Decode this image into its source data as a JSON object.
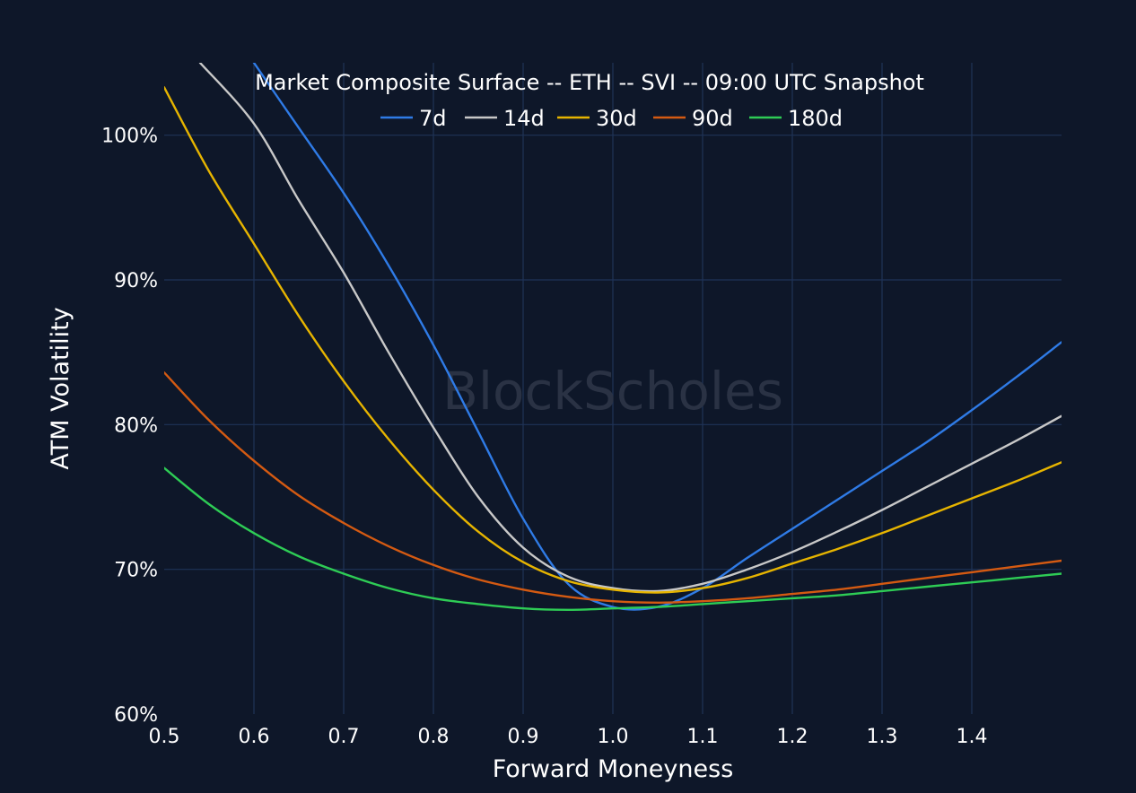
{
  "watermark": "BlockScholes",
  "colors": {
    "background": "#0e1729",
    "grid": "#1f3357"
  },
  "chart_data": {
    "type": "line",
    "title": "Market Composite Surface -- ETH -- SVI -- 09:00 UTC Snapshot",
    "xlabel": "Forward Moneyness",
    "ylabel": "ATM Volatility",
    "xlim": [
      0.5,
      1.5
    ],
    "ylim": [
      60,
      105
    ],
    "x_ticks": [
      0.5,
      0.6,
      0.7,
      0.8,
      0.9,
      1.0,
      1.1,
      1.2,
      1.3,
      1.4
    ],
    "x_tick_labels": [
      "0.5",
      "0.6",
      "0.7",
      "0.8",
      "0.9",
      "1.0",
      "1.1",
      "1.2",
      "1.3",
      "1.4"
    ],
    "y_ticks": [
      60,
      70,
      80,
      90,
      100
    ],
    "y_tick_labels": [
      "60%",
      "70%",
      "80%",
      "90%",
      "100%"
    ],
    "grid": true,
    "legend_position": "top-center",
    "series": [
      {
        "name": "7d",
        "color": "#2f7be6",
        "x": [
          0.6,
          0.65,
          0.7,
          0.75,
          0.8,
          0.85,
          0.9,
          0.95,
          1.0,
          1.05,
          1.1,
          1.15,
          1.2,
          1.25,
          1.3,
          1.35,
          1.4,
          1.45,
          1.5
        ],
        "y": [
          105.0,
          100.5,
          96.0,
          91.0,
          85.5,
          79.5,
          73.5,
          69.0,
          67.4,
          67.4,
          68.7,
          70.8,
          72.8,
          74.8,
          76.8,
          78.8,
          81.0,
          83.3,
          85.7
        ]
      },
      {
        "name": "14d",
        "color": "#c8c8c8",
        "x": [
          0.54,
          0.6,
          0.65,
          0.7,
          0.75,
          0.8,
          0.85,
          0.9,
          0.95,
          1.0,
          1.05,
          1.1,
          1.15,
          1.2,
          1.25,
          1.3,
          1.35,
          1.4,
          1.45,
          1.5
        ],
        "y": [
          105.0,
          100.8,
          95.5,
          90.5,
          85.0,
          79.8,
          75.0,
          71.5,
          69.5,
          68.7,
          68.5,
          69.0,
          70.0,
          71.2,
          72.6,
          74.1,
          75.7,
          77.3,
          78.9,
          80.6
        ]
      },
      {
        "name": "30d",
        "color": "#e6b400",
        "x": [
          0.5,
          0.55,
          0.6,
          0.65,
          0.7,
          0.75,
          0.8,
          0.85,
          0.9,
          0.95,
          1.0,
          1.05,
          1.1,
          1.15,
          1.2,
          1.25,
          1.3,
          1.35,
          1.4,
          1.45,
          1.5
        ],
        "y": [
          103.3,
          97.5,
          92.5,
          87.5,
          83.0,
          79.0,
          75.5,
          72.6,
          70.5,
          69.2,
          68.6,
          68.4,
          68.7,
          69.4,
          70.4,
          71.4,
          72.5,
          73.7,
          74.9,
          76.1,
          77.4
        ]
      },
      {
        "name": "90d",
        "color": "#d45a12",
        "x": [
          0.5,
          0.55,
          0.6,
          0.65,
          0.7,
          0.75,
          0.8,
          0.85,
          0.9,
          0.95,
          1.0,
          1.05,
          1.1,
          1.15,
          1.2,
          1.25,
          1.3,
          1.35,
          1.4,
          1.45,
          1.5
        ],
        "y": [
          83.6,
          80.3,
          77.5,
          75.1,
          73.2,
          71.6,
          70.3,
          69.3,
          68.6,
          68.1,
          67.8,
          67.7,
          67.8,
          68.0,
          68.3,
          68.6,
          69.0,
          69.4,
          69.8,
          70.2,
          70.6
        ]
      },
      {
        "name": "180d",
        "color": "#2ecc55",
        "x": [
          0.5,
          0.55,
          0.6,
          0.65,
          0.7,
          0.75,
          0.8,
          0.85,
          0.9,
          0.95,
          1.0,
          1.05,
          1.1,
          1.15,
          1.2,
          1.25,
          1.3,
          1.35,
          1.4,
          1.45,
          1.5
        ],
        "y": [
          77.0,
          74.5,
          72.5,
          70.9,
          69.7,
          68.7,
          68.0,
          67.6,
          67.3,
          67.2,
          67.3,
          67.4,
          67.6,
          67.8,
          68.0,
          68.2,
          68.5,
          68.8,
          69.1,
          69.4,
          69.7
        ]
      }
    ]
  }
}
